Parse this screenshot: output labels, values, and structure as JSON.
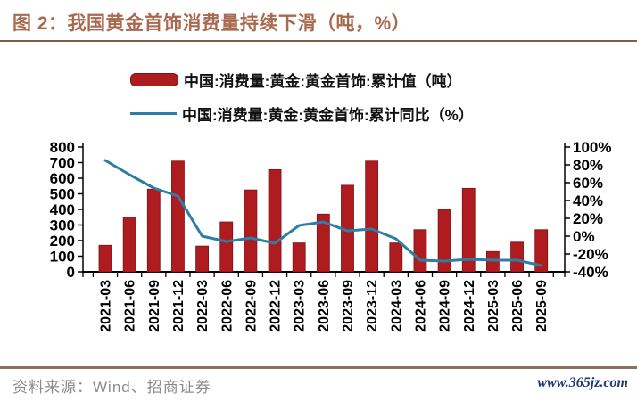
{
  "title": "图 2：我国黄金首饰消费量持续下滑（吨，%）",
  "legend": {
    "bar_label": "中国:消费量:黄金:黄金首饰:累计值（吨）",
    "line_label": "中国:消费量:黄金:黄金首饰:累计同比（%）"
  },
  "footer": {
    "source": "资料来源：Wind、招商证券",
    "site": "www.365jz.com"
  },
  "colors": {
    "title": "#a8694f",
    "bar": "#ae1c20",
    "bar_border": "#7e1214",
    "line": "#2e7da6",
    "axis": "#000000",
    "rule": "#7d5c4a",
    "footer_rule": "#8a7261",
    "source_text": "#8c8c8c",
    "site_link": "#1f3a72"
  },
  "chart_data": {
    "type": "bar",
    "subtype": "bar+line dual axis",
    "categories": [
      "2021-03",
      "2021-06",
      "2021-09",
      "2021-12",
      "2022-03",
      "2022-06",
      "2022-09",
      "2022-12",
      "2023-03",
      "2023-06",
      "2023-09",
      "2023-12",
      "2024-03",
      "2024-06",
      "2024-09",
      "2024-12",
      "2025-03",
      "2025-06",
      "2025-09"
    ],
    "series": [
      {
        "name": "中国:消费量:黄金:黄金首饰:累计值（吨）",
        "type": "bar",
        "axis": "left",
        "color": "#ae1c20",
        "values": [
          170,
          350,
          530,
          710,
          165,
          320,
          525,
          655,
          185,
          370,
          555,
          710,
          185,
          270,
          400,
          535,
          130,
          190,
          270
        ]
      },
      {
        "name": "中国:消费量:黄金:黄金首饰:累计同比（%）",
        "type": "line",
        "axis": "right",
        "color": "#2e7da6",
        "values": [
          85,
          69,
          54,
          45,
          0,
          -6,
          -2,
          -8,
          12,
          16,
          6,
          8,
          -3,
          -27,
          -28,
          -26,
          -27,
          -27,
          -33
        ]
      }
    ],
    "left_axis": {
      "min": 0,
      "max": 800,
      "step": 100,
      "tick_labels": [
        "800",
        "700",
        "600",
        "500",
        "400",
        "300",
        "200",
        "100",
        "0"
      ]
    },
    "right_axis": {
      "min": -40,
      "max": 100,
      "step": 20,
      "tick_labels": [
        "100%",
        "80%",
        "60%",
        "40%",
        "20%",
        "0%",
        "-20%",
        "-40%"
      ]
    },
    "grid": false,
    "legend_position": "top",
    "x_label_rotation": -90
  }
}
